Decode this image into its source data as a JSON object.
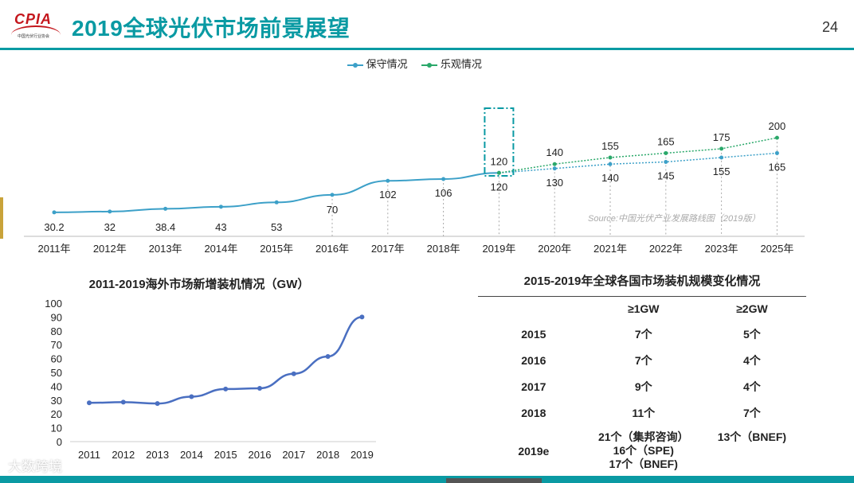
{
  "header": {
    "logo_text": "CPIA",
    "logo_org": "中国光伏行业协会",
    "title": "2019全球光伏市场前景展望",
    "page_number": "24"
  },
  "colors": {
    "accent": "#0a9aa3",
    "conservative": "#3ca0c8",
    "optimistic": "#2aa86a",
    "bottom_line": "#4a6fc1"
  },
  "top_chart": {
    "legend": [
      "保守情况",
      "乐观情况"
    ],
    "source": "Source:中国光伏产业发展路线图（2019版）",
    "highlight_year": "2019年"
  },
  "bottom_chart": {
    "title": "2011-2019海外市场新增装机情况（GW）"
  },
  "table": {
    "title": "2015-2019年全球各国市场装机规模变化情况",
    "headers": [
      "",
      "≥1GW",
      "≥2GW"
    ],
    "rows": [
      {
        "year": "2015",
        "ge1": "7个",
        "ge2": "5个"
      },
      {
        "year": "2016",
        "ge1": "7个",
        "ge2": "4个"
      },
      {
        "year": "2017",
        "ge1": "9个",
        "ge2": "4个"
      },
      {
        "year": "2018",
        "ge1": "11个",
        "ge2": "7个"
      }
    ],
    "last_row": {
      "year": "2019e",
      "ge1_lines": [
        "21个（集邦咨询）",
        "16个（SPE)",
        "17个（BNEF)"
      ],
      "ge2": "13个（BNEF)"
    }
  },
  "watermark": "大数跨境",
  "chart_data": [
    {
      "type": "line",
      "title": "",
      "categories": [
        "2011年",
        "2012年",
        "2013年",
        "2014年",
        "2015年",
        "2016年",
        "2017年",
        "2018年",
        "2019年",
        "2020年",
        "2021年",
        "2022年",
        "2023年",
        "2025年"
      ],
      "series": [
        {
          "name": "保守情况",
          "values": [
            30.2,
            32,
            38.4,
            43,
            53,
            70,
            102,
            106,
            120,
            130,
            140,
            145,
            155,
            165
          ],
          "labels": [
            "30.2",
            "32",
            "38.4",
            "43",
            "53",
            "70",
            "102",
            "106",
            "120",
            "130",
            "140",
            "145",
            "155",
            "165"
          ]
        },
        {
          "name": "乐观情况",
          "values": [
            null,
            null,
            null,
            null,
            null,
            null,
            null,
            null,
            120,
            140,
            155,
            165,
            175,
            200
          ],
          "labels": [
            "",
            "",
            "",
            "",
            "",
            "",
            "",
            "",
            "120",
            "140",
            "155",
            "165",
            "175",
            "200"
          ]
        }
      ],
      "ylim": [
        0,
        210
      ],
      "grid": false,
      "legend": "top-center"
    },
    {
      "type": "line",
      "title": "2011-2019海外市场新增装机情况（GW）",
      "categories": [
        "2011",
        "2012",
        "2013",
        "2014",
        "2015",
        "2016",
        "2017",
        "2018",
        "2019"
      ],
      "series": [
        {
          "name": "海外市场新增装机",
          "values": [
            28,
            28.5,
            27.5,
            32.5,
            38,
            38.5,
            49,
            61.5,
            90
          ]
        }
      ],
      "yticks": [
        "0",
        "10",
        "20",
        "30",
        "40",
        "50",
        "60",
        "70",
        "80",
        "90",
        "100"
      ],
      "ylim": [
        0,
        100
      ],
      "grid": false
    }
  ]
}
